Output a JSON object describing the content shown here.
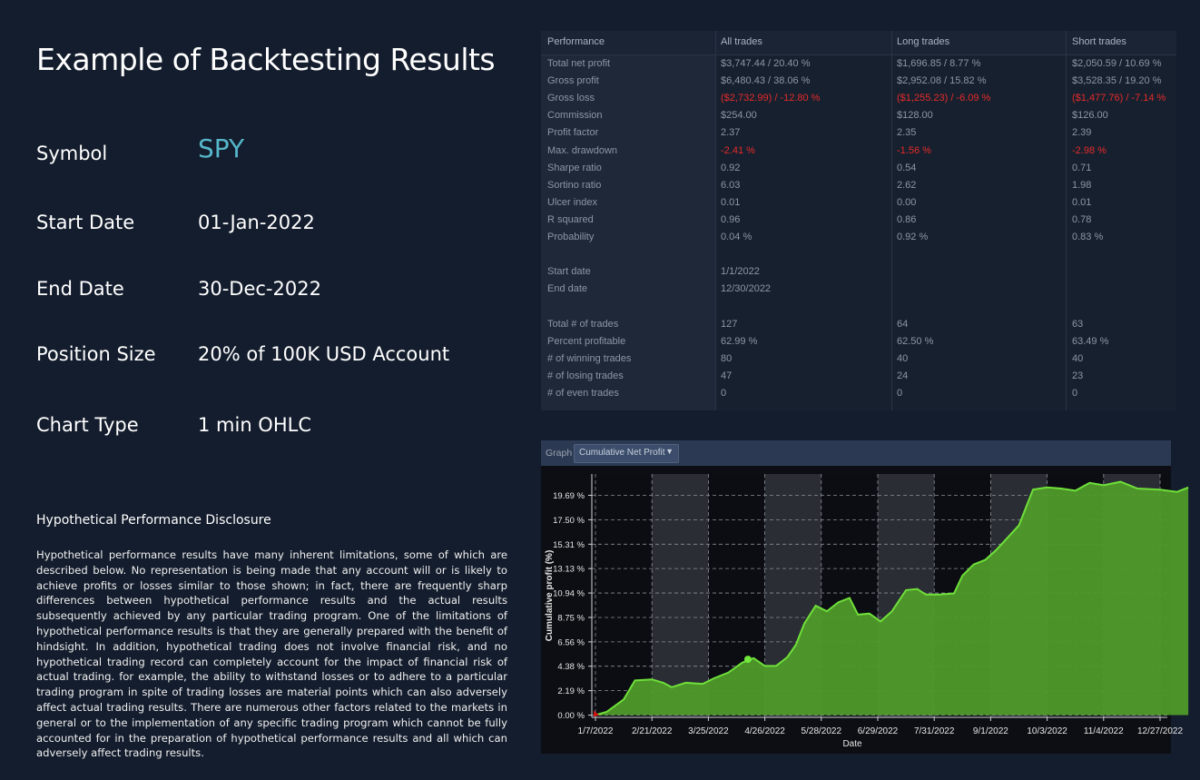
{
  "title": "Example of Backtesting Results",
  "info": [
    {
      "label": "Symbol",
      "value": "SPY"
    },
    {
      "label": "Start Date",
      "value": "01-Jan-2022"
    },
    {
      "label": "End Date",
      "value": "30-Dec-2022"
    },
    {
      "label": "Position Size",
      "value": "20% of 100K USD Account"
    },
    {
      "label": "Chart Type",
      "value": "1 min OHLC"
    }
  ],
  "disclosure": {
    "title": "Hypothetical Performance Disclosure",
    "body": "Hypothetical performance results have many inherent limitations, some of which are described below. No representation is being made that any account will or is likely to achieve profits or losses similar to those shown; in fact, there are frequently sharp differences between hypothetical performance results and the actual results subsequently achieved by any particular trading program. One of the limitations of hypothetical performance results is that they are generally prepared with the benefit of hindsight. In addition, hypothetical trading does not involve financial risk, and no hypothetical trading record can completely account for the impact of financial risk of actual trading. for example, the ability to withstand losses or to adhere to a particular trading program in spite of trading losses are material points which can also adversely affect actual trading results. There are numerous other factors related to the markets in general or to the implementation of any specific trading program which cannot be fully accounted for in the preparation of hypothetical performance results and all which can adversely affect trading results."
  },
  "performance": {
    "headers": [
      "Performance",
      "All trades",
      "Long trades",
      "Short trades"
    ],
    "rows": [
      {
        "label": "Total net profit",
        "all": "$3,747.44 / 20.40 %",
        "long": "$1,696.85 / 8.77 %",
        "short": "$2,050.59 / 10.69 %"
      },
      {
        "label": "Gross profit",
        "all": "$6,480.43 / 38.06 %",
        "long": "$2,952.08 / 15.82 %",
        "short": "$3,528.35 / 19.20 %"
      },
      {
        "label": "Gross loss",
        "all": "($2,732.99) / -12.80 %",
        "long": "($1,255.23) / -6.09 %",
        "short": "($1,477.76) / -7.14 %",
        "negative": true
      },
      {
        "label": "Commission",
        "all": "$254.00",
        "long": "$128.00",
        "short": "$126.00"
      },
      {
        "label": "Profit factor",
        "all": "2.37",
        "long": "2.35",
        "short": "2.39"
      },
      {
        "label": "Max. drawdown",
        "all": "-2.41 %",
        "long": "-1.56 %",
        "short": "-2.98 %",
        "negative": true
      },
      {
        "label": "Sharpe ratio",
        "all": "0.92",
        "long": "0.54",
        "short": "0.71"
      },
      {
        "label": "Sortino ratio",
        "all": "6.03",
        "long": "2.62",
        "short": "1.98"
      },
      {
        "label": "Ulcer index",
        "all": "0.01",
        "long": "0.00",
        "short": "0.01"
      },
      {
        "label": "R squared",
        "all": "0.96",
        "long": "0.86",
        "short": "0.78"
      },
      {
        "label": "Probability",
        "all": "0.04 %",
        "long": "0.92 %",
        "short": "0.83 %"
      },
      {
        "label": "",
        "all": "",
        "long": "",
        "short": ""
      },
      {
        "label": "Start date",
        "all": "1/1/2022",
        "long": "",
        "short": ""
      },
      {
        "label": "End date",
        "all": "12/30/2022",
        "long": "",
        "short": ""
      },
      {
        "label": "",
        "all": "",
        "long": "",
        "short": ""
      },
      {
        "label": "Total # of trades",
        "all": "127",
        "long": "64",
        "short": "63"
      },
      {
        "label": "Percent profitable",
        "all": "62.99 %",
        "long": "62.50 %",
        "short": "63.49 %"
      },
      {
        "label": "# of winning trades",
        "all": "80",
        "long": "40",
        "short": "40"
      },
      {
        "label": "# of losing trades",
        "all": "47",
        "long": "24",
        "short": "23"
      },
      {
        "label": "# of even trades",
        "all": "0",
        "long": "0",
        "short": "0"
      }
    ]
  },
  "graph": {
    "label": "Graph",
    "selected": "Cumulative Net Profit",
    "dropdown_icon": "chevron-down-icon"
  },
  "chart_data": {
    "type": "area",
    "xlabel": "Date",
    "ylabel": "Cumulative profit (%)",
    "y_ticks": [
      "0.00 %",
      "2.19 %",
      "4.38 %",
      "6.56 %",
      "8.75 %",
      "10.94 %",
      "13.13 %",
      "15.31 %",
      "17.50 %",
      "19.69 %"
    ],
    "x_ticks": [
      "1/7/2022",
      "2/21/2022",
      "3/25/2022",
      "4/26/2022",
      "5/28/2022",
      "6/29/2022",
      "7/31/2022",
      "9/1/2022",
      "10/3/2022",
      "11/4/2022",
      "12/27/2022"
    ],
    "ylim": [
      -0.2,
      21.6
    ],
    "series": [
      {
        "values": [
          [
            0.0,
            0.0
          ],
          [
            0.2,
            0.3
          ],
          [
            0.5,
            1.4
          ],
          [
            0.7,
            3.1
          ],
          [
            1.0,
            3.2
          ],
          [
            1.2,
            2.9
          ],
          [
            1.35,
            2.5
          ],
          [
            1.6,
            2.9
          ],
          [
            1.9,
            2.8
          ],
          [
            2.1,
            3.3
          ],
          [
            2.35,
            3.8
          ],
          [
            2.6,
            4.7
          ],
          [
            2.8,
            5.1
          ],
          [
            3.0,
            4.4
          ],
          [
            3.2,
            4.4
          ],
          [
            3.4,
            5.2
          ],
          [
            3.55,
            6.3
          ],
          [
            3.7,
            8.2
          ],
          [
            3.9,
            9.8
          ],
          [
            4.1,
            9.3
          ],
          [
            4.3,
            10.1
          ],
          [
            4.5,
            10.5
          ],
          [
            4.65,
            9.0
          ],
          [
            4.85,
            9.1
          ],
          [
            5.05,
            8.4
          ],
          [
            5.25,
            9.3
          ],
          [
            5.5,
            11.2
          ],
          [
            5.7,
            11.3
          ],
          [
            5.85,
            10.8
          ],
          [
            6.1,
            10.8
          ],
          [
            6.35,
            10.9
          ],
          [
            6.5,
            12.5
          ],
          [
            6.7,
            13.5
          ],
          [
            6.9,
            13.9
          ],
          [
            7.1,
            14.8
          ],
          [
            7.3,
            15.9
          ],
          [
            7.5,
            17.0
          ],
          [
            7.75,
            20.2
          ],
          [
            8.0,
            20.4
          ],
          [
            8.25,
            20.3
          ],
          [
            8.5,
            20.1
          ],
          [
            8.75,
            20.8
          ],
          [
            9.0,
            20.6
          ],
          [
            9.3,
            20.9
          ],
          [
            9.6,
            20.3
          ],
          [
            10.0,
            20.2
          ],
          [
            10.3,
            20.0
          ],
          [
            10.5,
            20.4
          ]
        ]
      }
    ],
    "colors": {
      "line": "#6fe03a",
      "fill": "#4f9a2a",
      "marker": "#72e83c",
      "start_marker": "#d01515"
    },
    "marker_point": [
      2.7,
      5.0
    ],
    "grid": true
  }
}
